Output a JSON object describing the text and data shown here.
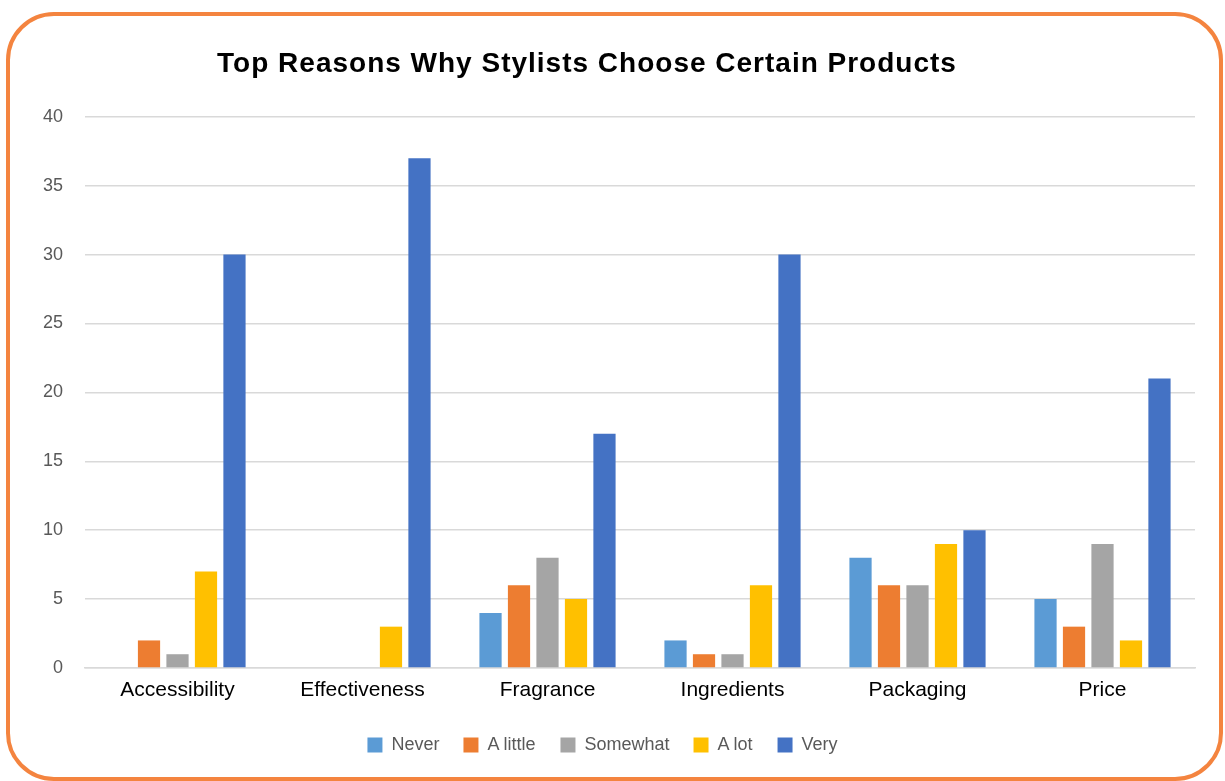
{
  "chart_data": {
    "type": "bar",
    "title": "Top Reasons Why Stylists Choose Certain Products",
    "categories": [
      "Accessibility",
      "Effectiveness",
      "Fragrance",
      "Ingredients",
      "Packaging",
      "Price"
    ],
    "series": [
      {
        "name": "Never",
        "color": "#5b9bd5",
        "values": [
          null,
          null,
          4,
          2,
          8,
          5
        ]
      },
      {
        "name": "A little",
        "color": "#ed7d31",
        "values": [
          2,
          null,
          6,
          1,
          6,
          3
        ]
      },
      {
        "name": "Somewhat",
        "color": "#a5a5a5",
        "values": [
          1,
          null,
          8,
          1,
          6,
          9
        ]
      },
      {
        "name": "A lot",
        "color": "#ffc000",
        "values": [
          7,
          3,
          5,
          6,
          9,
          2
        ]
      },
      {
        "name": "Very",
        "color": "#4472c4",
        "values": [
          30,
          37,
          17,
          30,
          10,
          21
        ]
      }
    ],
    "ylim": [
      0,
      40
    ],
    "yticks": [
      0,
      5,
      10,
      15,
      20,
      25,
      30,
      35,
      40
    ],
    "grid": "y",
    "legend": "bottom"
  }
}
